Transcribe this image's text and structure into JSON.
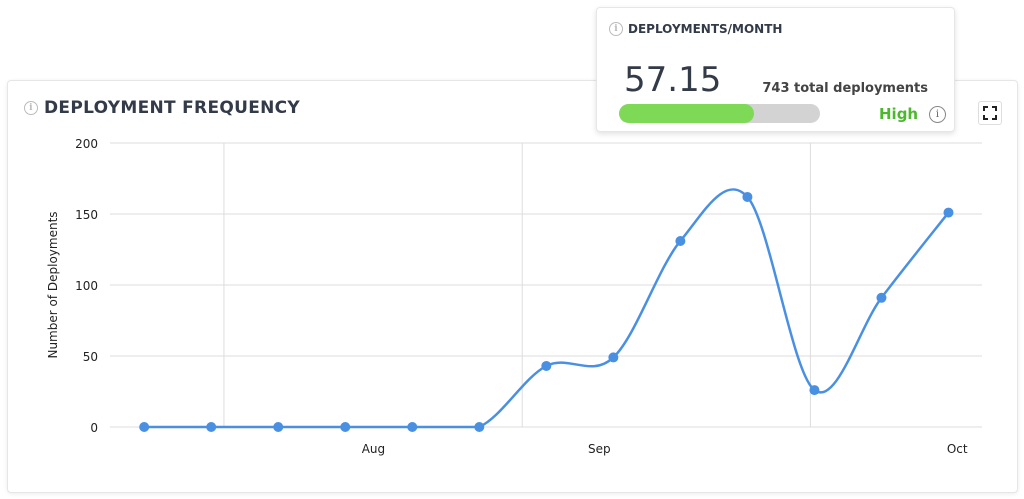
{
  "chart_data": {
    "type": "line",
    "title": "DEPLOYMENT FREQUENCY",
    "ylabel": "Number of Deployments",
    "xlabel": "",
    "ylim": [
      0,
      200
    ],
    "yticks": [
      0,
      50,
      100,
      150,
      200
    ],
    "x": [
      0,
      1,
      2,
      3,
      4,
      5,
      6,
      7,
      8,
      9,
      10,
      11,
      12
    ],
    "values": [
      0,
      0,
      0,
      0,
      0,
      0,
      43,
      49,
      131,
      162,
      26,
      91,
      151
    ],
    "xticks": [
      {
        "label": "Aug",
        "x": 3.42
      },
      {
        "label": "Sep",
        "x": 6.79
      },
      {
        "label": "Oct",
        "x": 12.13
      }
    ],
    "vgrid": [
      1.19,
      5.64,
      9.94
    ],
    "xlim": [
      -0.51,
      12.5
    ],
    "grid": true,
    "color": "#4a90e2"
  },
  "popup": {
    "title": "DEPLOYMENTS/MONTH",
    "value": "57.15",
    "total": "743 total deployments",
    "level": "High",
    "progress": 0.67,
    "level_color": "#4cb82e"
  },
  "icons": {
    "info": "i"
  }
}
